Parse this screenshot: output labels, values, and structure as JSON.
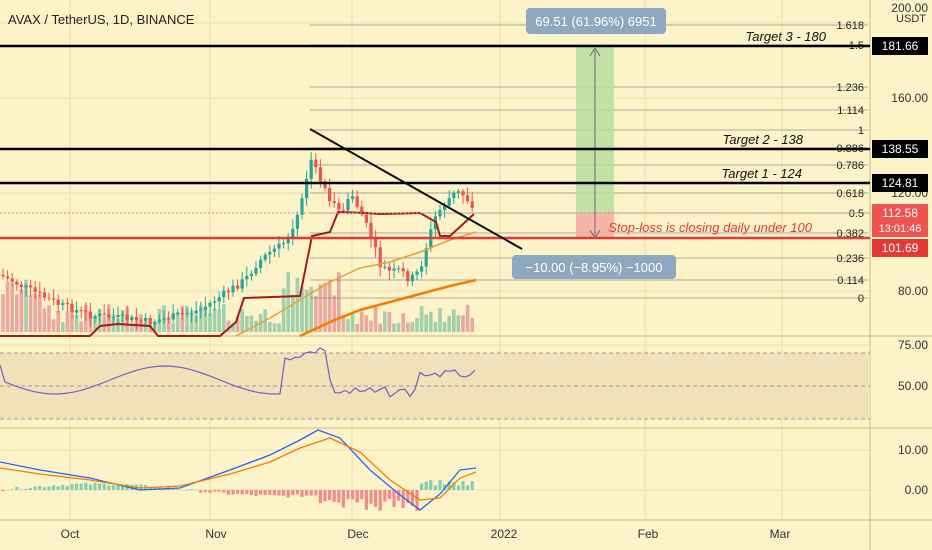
{
  "header": {
    "symbol_line": "AVAX / TetherUS, 1D, BINANCE"
  },
  "chart_data": {
    "type": "candlestick",
    "currency": "USDT",
    "price_ticks": [
      "200.00",
      "160.00",
      "120.00",
      "80.00"
    ],
    "time_labels": [
      "Oct",
      "Nov",
      "Dec",
      "2022",
      "Feb",
      "Mar"
    ],
    "fib_levels": [
      {
        "label": "1.618"
      },
      {
        "label": "1.5"
      },
      {
        "label": "1.236"
      },
      {
        "label": "1.114"
      },
      {
        "label": "1"
      },
      {
        "label": "0.886"
      },
      {
        "label": "0.786"
      },
      {
        "label": "0.618"
      },
      {
        "label": "0.5"
      },
      {
        "label": "0.382"
      },
      {
        "label": "0.236"
      },
      {
        "label": "0.114"
      },
      {
        "label": "0"
      }
    ],
    "targets": [
      {
        "label": "Target 3 - 180",
        "price": "181.66"
      },
      {
        "label": "Target 2 - 138",
        "price": "138.55"
      },
      {
        "label": "Target 1 - 124",
        "price": "124.81"
      }
    ],
    "stop_loss": {
      "label": "Stop-loss is closing daily under 100",
      "price": "101.69"
    },
    "current_price": {
      "price": "112.58",
      "countdown": "13:01:46"
    },
    "long_measure": "69.51 (61.96%) 6951",
    "short_measure": "−10.00 (−8.95%) −1000",
    "rsi": {
      "ticks": [
        "75.00",
        "50.00"
      ]
    },
    "macd": {
      "ticks": [
        "10.00",
        "0.00"
      ]
    },
    "colors": {
      "background": "#fdf3c8",
      "up": "#26a69a",
      "down": "#ef5350",
      "ma_red": "#a11d1d",
      "ma_orange": "#f57c00",
      "target_line": "#000000",
      "stop_line": "#e53935"
    }
  }
}
